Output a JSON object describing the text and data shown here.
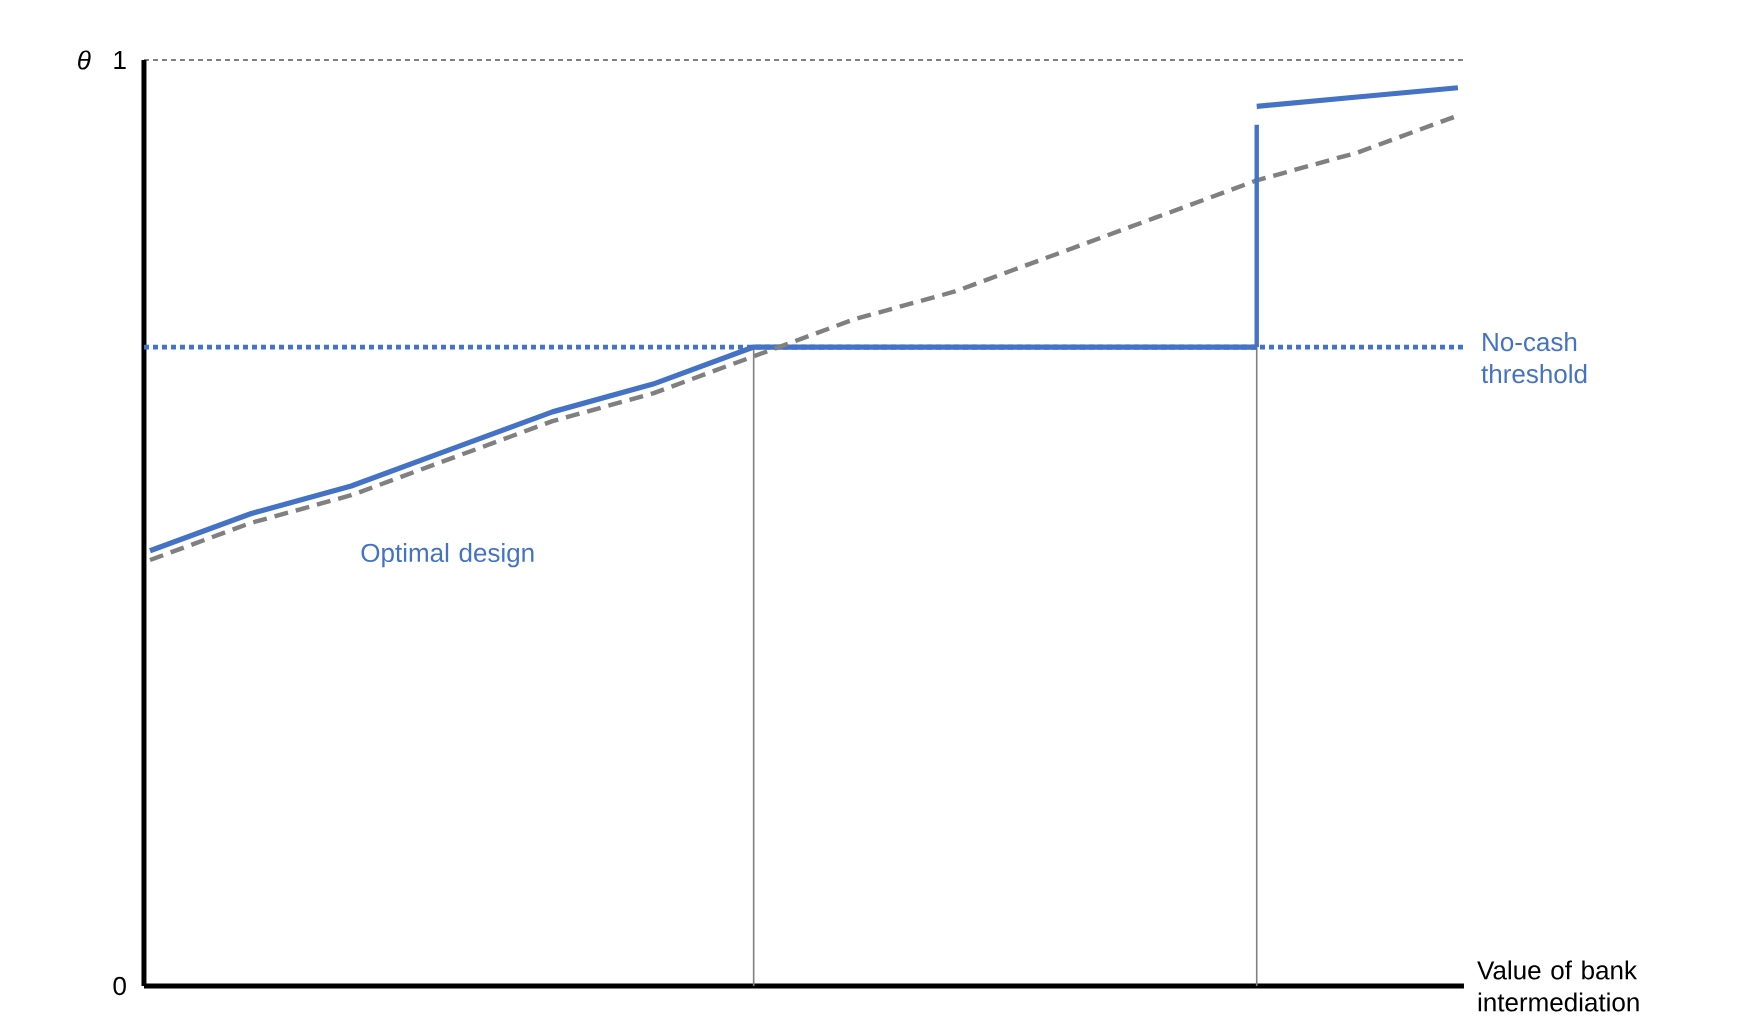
{
  "chart_data": {
    "type": "line",
    "ylabel": "θ",
    "xlabel": "Value of bank intermediation",
    "categories": [
      null,
      null,
      null,
      null,
      null,
      null,
      null,
      null,
      null,
      null,
      null,
      null,
      null,
      null
    ],
    "ylim": [
      0,
      1
    ],
    "yticks": [
      0,
      1
    ],
    "tick_labels": "y",
    "series": [
      {
        "name": "Optimal design",
        "color": "#4472c4",
        "line_style": "solid",
        "values": [
          0.47,
          0.51,
          0.54,
          0.58,
          0.62,
          0.65,
          0.69,
          0.69,
          0.69,
          0.69,
          0.69,
          0.69,
          null,
          null
        ]
      },
      {
        "color": "#4472c4",
        "line_style": "solid",
        "values": [
          null,
          null,
          null,
          null,
          null,
          null,
          null,
          null,
          null,
          null,
          null,
          0.95,
          0.96,
          0.97
        ]
      },
      {
        "color": "#808080",
        "line_style": "dashed",
        "values": [
          0.46,
          0.5,
          0.53,
          0.57,
          0.61,
          0.64,
          0.68,
          0.72,
          0.75,
          0.79,
          0.83,
          0.87,
          0.9,
          0.94
        ]
      },
      {
        "type": "bar",
        "color": "#4472c4",
        "line_style": "dotted",
        "base": [
          null,
          null,
          null,
          null,
          null,
          null,
          null,
          null,
          null,
          null,
          null,
          0.69,
          null,
          null
        ],
        "values": [
          null,
          null,
          null,
          null,
          null,
          null,
          null,
          null,
          null,
          null,
          null,
          0.24,
          null,
          null
        ]
      },
      {
        "type": "bar",
        "color": "#808080",
        "line_style": "solid",
        "values": [
          null,
          null,
          null,
          null,
          null,
          null,
          0.69,
          null,
          null,
          null,
          null,
          0.69,
          null,
          null
        ]
      }
    ],
    "ref_lines": [
      {
        "axis": "y",
        "value": 1,
        "color": "#000000",
        "line_style": "dotted"
      },
      {
        "axis": "y",
        "value": 0.69,
        "color": "#4472c4",
        "line_style": "dotted",
        "label": "No-cash threshold"
      }
    ]
  }
}
